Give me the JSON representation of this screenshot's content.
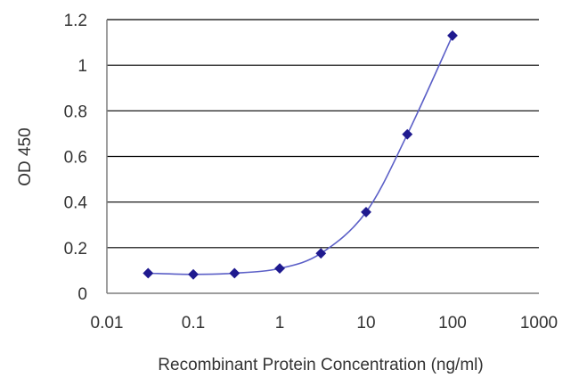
{
  "chart_data": {
    "type": "line",
    "xlabel": "Recombinant Protein Concentration (ng/ml)",
    "ylabel": "OD 450",
    "x_scale": "log",
    "xlim": [
      0.01,
      1000
    ],
    "ylim": [
      0,
      1.2
    ],
    "x_ticks": [
      0.01,
      0.1,
      1,
      10,
      100,
      1000
    ],
    "x_tick_labels": [
      "0.01",
      "0.1",
      "1",
      "10",
      "100",
      "1000"
    ],
    "y_ticks": [
      0,
      0.2,
      0.4,
      0.6,
      0.8,
      1,
      1.2
    ],
    "y_tick_labels": [
      "0",
      "0.2",
      "0.4",
      "0.6",
      "0.8",
      "1",
      "1.2"
    ],
    "grid": "horizontal",
    "series": [
      {
        "x": [
          0.03,
          0.1,
          0.3,
          1,
          3,
          10,
          30,
          100
        ],
        "y": [
          0.088,
          0.083,
          0.088,
          0.109,
          0.175,
          0.356,
          0.697,
          1.13
        ]
      }
    ],
    "colors": {
      "line": "#5b5fc7",
      "marker": "#1f1a8f",
      "grid": "#000000",
      "axis": "#7f7f7f"
    }
  }
}
